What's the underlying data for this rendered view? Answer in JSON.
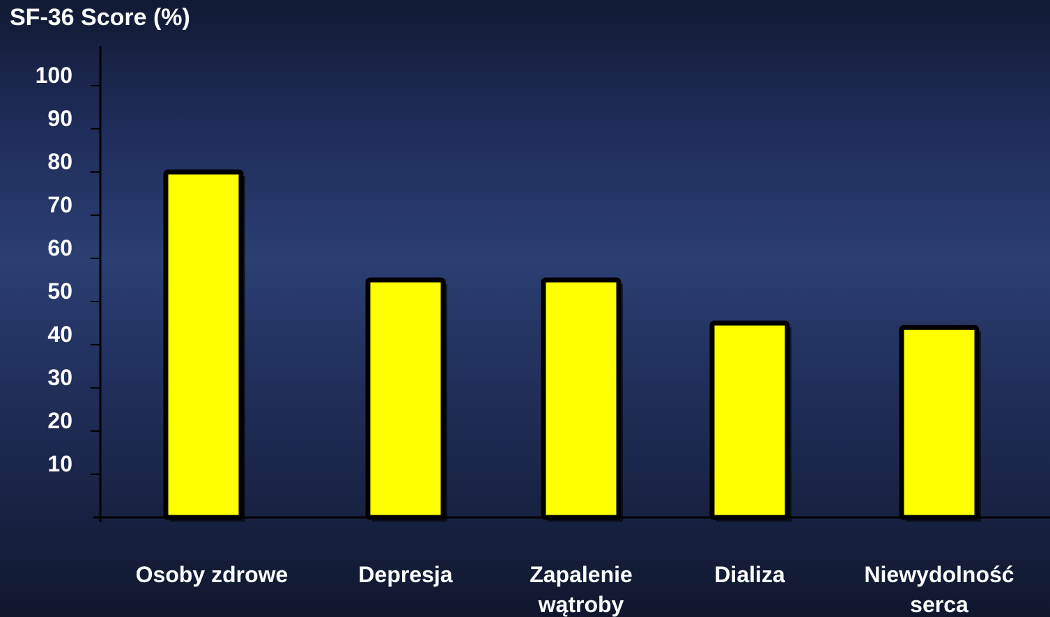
{
  "chart_data": {
    "type": "bar",
    "title": "",
    "ylabel": "SF-36 Score (%)",
    "xlabel": "",
    "categories": [
      [
        "Osoby zdrowe"
      ],
      [
        "Depresja"
      ],
      [
        "Zapalenie",
        "wątroby"
      ],
      [
        "Dializa"
      ],
      [
        "Niewydolność",
        "serca"
      ]
    ],
    "values": [
      80,
      55,
      55,
      45,
      44
    ],
    "ylim": [
      0,
      100
    ],
    "yticks": [
      10,
      20,
      30,
      40,
      50,
      60,
      70,
      80,
      90,
      100
    ],
    "grid": false,
    "legend": "none",
    "colors": {
      "bar_fill": "#ffff00",
      "bar_stroke": "#000000",
      "axis": "#000000",
      "text": "#ffffff"
    }
  }
}
